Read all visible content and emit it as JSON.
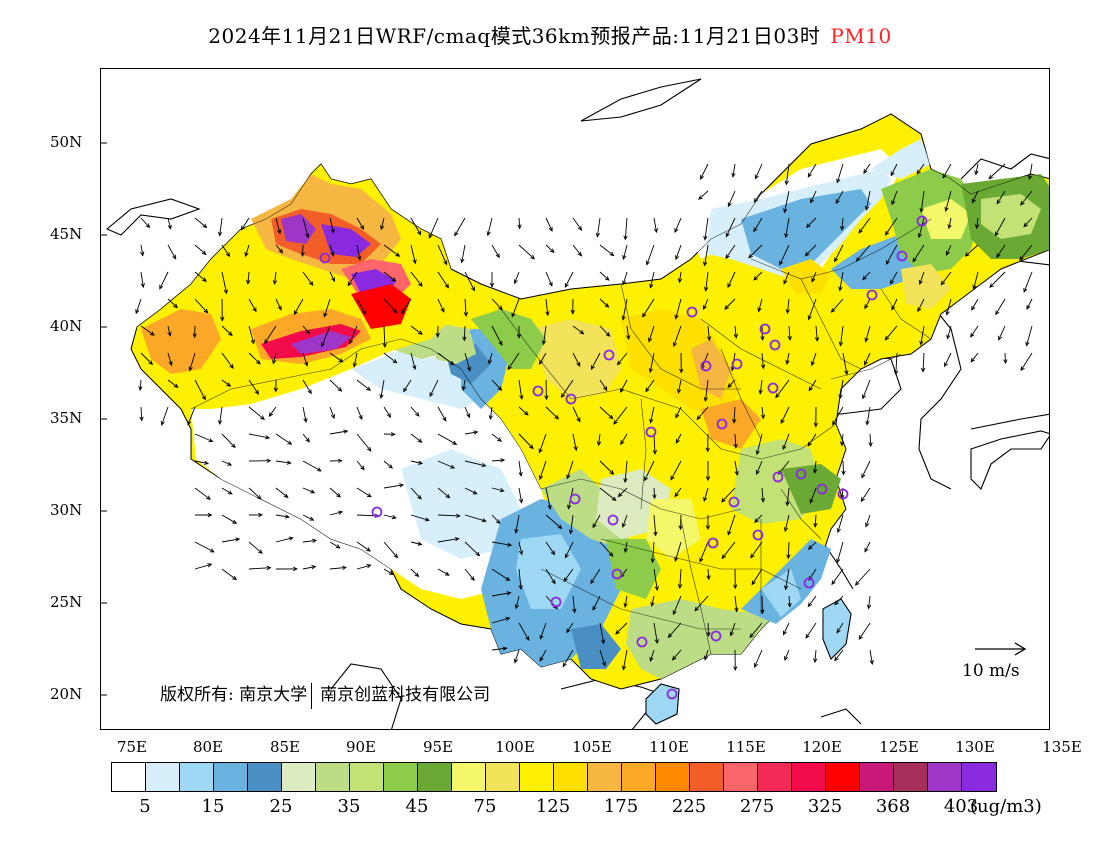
{
  "title": {
    "main": "2024年11月21日WRF/cmaq模式36km预报产品:11月21日03时",
    "pollutant": "PM10",
    "pollutant_color": "#ff2020"
  },
  "axes": {
    "lat_labels": [
      "50N",
      "45N",
      "40N",
      "35N",
      "30N",
      "25N",
      "20N"
    ],
    "lon_labels": [
      "75E",
      "80E",
      "85E",
      "90E",
      "95E",
      "100E",
      "105E",
      "110E",
      "115E",
      "120E",
      "125E",
      "130E",
      "135E"
    ]
  },
  "legend": {
    "unit": "(ug/m3)",
    "labels": [
      "5",
      "15",
      "25",
      "35",
      "45",
      "75",
      "125",
      "175",
      "225",
      "275",
      "325",
      "368",
      "403"
    ],
    "colors": [
      "#ffffff",
      "#d7effa",
      "#9fd8f5",
      "#6ab3e0",
      "#4a8fc4",
      "#dcebc0",
      "#bcdc86",
      "#c4e176",
      "#8ccc4a",
      "#6aaa34",
      "#f4f76a",
      "#f2e35a",
      "#fdf000",
      "#fee000",
      "#f6b642",
      "#fba828",
      "#fd8a00",
      "#f25e28",
      "#fc666a",
      "#f22a56",
      "#f30a4a",
      "#fe0000",
      "#c8187a",
      "#a82e5c",
      "#9e36c8",
      "#8a2ae0"
    ]
  },
  "copyright": {
    "left": "版权所有: 南京大学",
    "right": "南京创蓝科技有限公司"
  },
  "wind_scale": {
    "label": "10 m/s"
  },
  "map_icons": {
    "city_marker": "circle-icon",
    "wind_vector": "arrow-icon"
  }
}
